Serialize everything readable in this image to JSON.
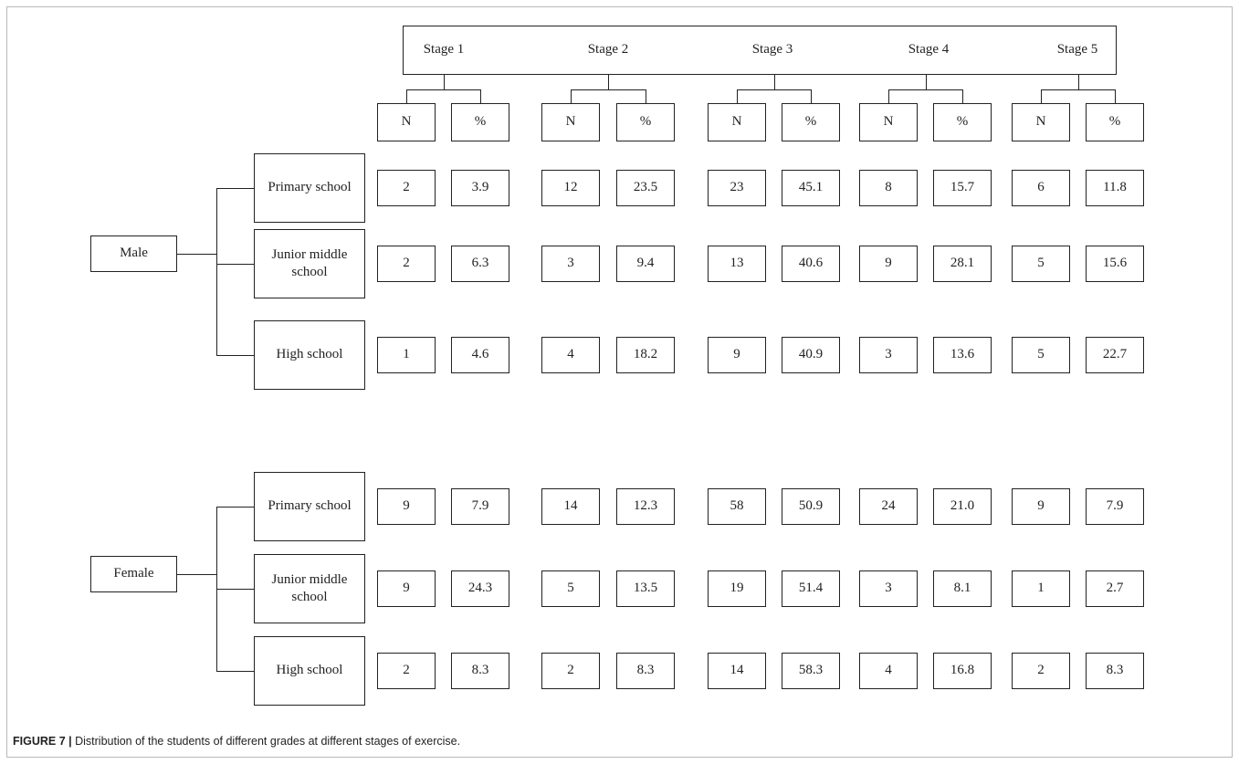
{
  "stages": [
    "Stage 1",
    "Stage 2",
    "Stage 3",
    "Stage 4",
    "Stage 5"
  ],
  "col_headers": {
    "n": "N",
    "pct": "%"
  },
  "groups": [
    {
      "label": "Male",
      "rows": [
        {
          "label": "Primary school",
          "values": [
            [
              "2",
              "3.9"
            ],
            [
              "12",
              "23.5"
            ],
            [
              "23",
              "45.1"
            ],
            [
              "8",
              "15.7"
            ],
            [
              "6",
              "11.8"
            ]
          ]
        },
        {
          "label": "Junior middle school",
          "values": [
            [
              "2",
              "6.3"
            ],
            [
              "3",
              "9.4"
            ],
            [
              "13",
              "40.6"
            ],
            [
              "9",
              "28.1"
            ],
            [
              "5",
              "15.6"
            ]
          ]
        },
        {
          "label": "High school",
          "values": [
            [
              "1",
              "4.6"
            ],
            [
              "4",
              "18.2"
            ],
            [
              "9",
              "40.9"
            ],
            [
              "3",
              "13.6"
            ],
            [
              "5",
              "22.7"
            ]
          ]
        }
      ]
    },
    {
      "label": "Female",
      "rows": [
        {
          "label": "Primary school",
          "values": [
            [
              "9",
              "7.9"
            ],
            [
              "14",
              "12.3"
            ],
            [
              "58",
              "50.9"
            ],
            [
              "24",
              "21.0"
            ],
            [
              "9",
              "7.9"
            ]
          ]
        },
        {
          "label": "Junior middle school",
          "values": [
            [
              "9",
              "24.3"
            ],
            [
              "5",
              "13.5"
            ],
            [
              "19",
              "51.4"
            ],
            [
              "3",
              "8.1"
            ],
            [
              "1",
              "2.7"
            ]
          ]
        },
        {
          "label": "High school",
          "values": [
            [
              "2",
              "8.3"
            ],
            [
              "2",
              "8.3"
            ],
            [
              "14",
              "58.3"
            ],
            [
              "4",
              "16.8"
            ],
            [
              "2",
              "8.3"
            ]
          ]
        }
      ]
    }
  ],
  "caption": {
    "label": "FIGURE 7 |",
    "text": " Distribution of the students of different grades at different stages of exercise."
  }
}
